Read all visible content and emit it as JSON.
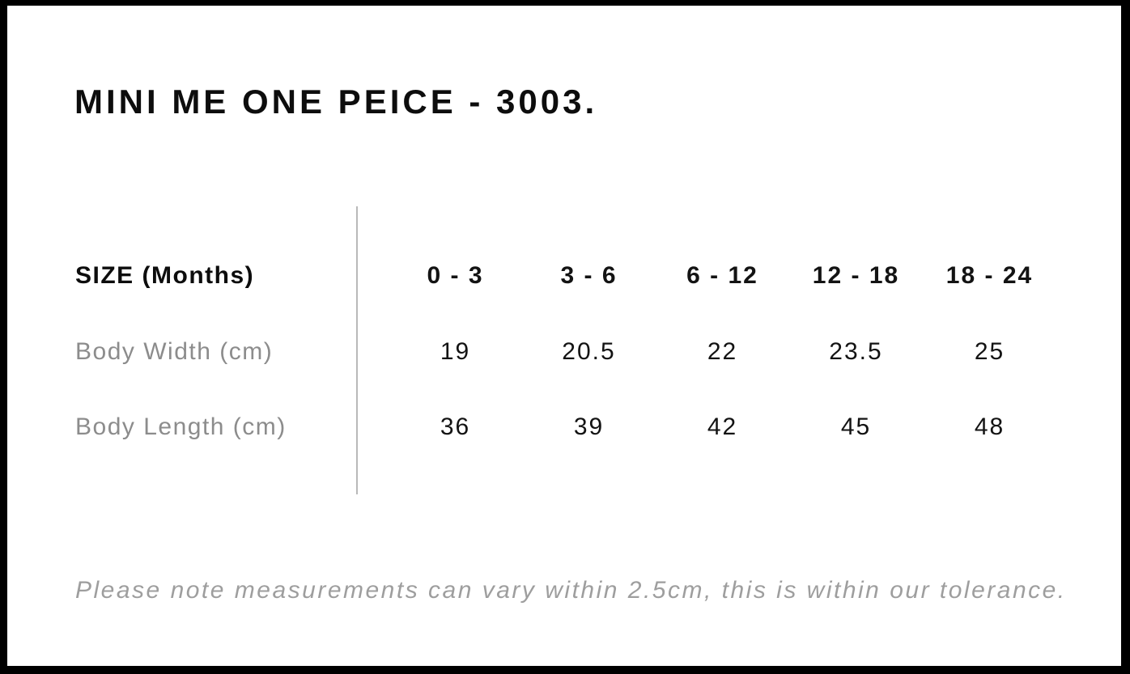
{
  "page": {
    "title": "MINI ME ONE PEICE - 3003.",
    "note": "Please note measurements can vary within 2.5cm, this is within our tolerance."
  },
  "size_chart": {
    "header_label": "SIZE (Months)",
    "columns": [
      "0 - 3",
      "3 - 6",
      "6 - 12",
      "12 - 18",
      "18 - 24"
    ],
    "rows": [
      {
        "label": "Body Width (cm)",
        "values": [
          "19",
          "20.5",
          "22",
          "23.5",
          "25"
        ]
      },
      {
        "label": "Body Length (cm)",
        "values": [
          "36",
          "39",
          "42",
          "45",
          "48"
        ]
      }
    ]
  },
  "colors": {
    "page_border": "#000000",
    "title_text": "#0d0d0d",
    "header_text": "#0d0d0d",
    "value_text": "#131313",
    "row_label_text": "#8c8c8c",
    "note_text": "#9e9e9e",
    "divider": "#b9b9b9",
    "background": "#ffffff"
  }
}
